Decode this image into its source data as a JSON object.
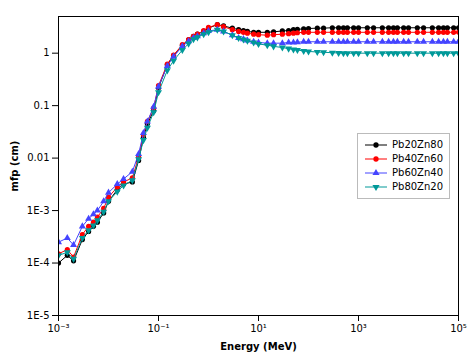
{
  "chart_data": {
    "type": "line",
    "xlabel": "Energy (MeV)",
    "ylabel": "mfp (cm)",
    "log": true,
    "grid": false,
    "legend": "center right",
    "xlim": [
      0.001,
      100000.0
    ],
    "ylim": [
      1e-05,
      5
    ],
    "xticks": [
      {
        "value": 0.001,
        "label": "10⁻³"
      },
      {
        "value": 0.1,
        "label": "10⁻¹"
      },
      {
        "value": 10.0,
        "label": "10¹"
      },
      {
        "value": 1000.0,
        "label": "10³"
      },
      {
        "value": 100000.0,
        "label": "10⁵"
      }
    ],
    "yticks": [
      {
        "value": 1e-05,
        "label": "1E-5"
      },
      {
        "value": 0.0001,
        "label": "1E-4"
      },
      {
        "value": 0.001,
        "label": "1E-3"
      },
      0.01,
      0.1,
      1
    ],
    "x": [
      0.001,
      0.0015,
      0.002,
      0.003,
      0.004,
      0.005,
      0.006,
      0.008,
      0.01,
      0.015,
      0.02,
      0.03,
      0.04,
      0.05,
      0.06,
      0.08,
      0.1,
      0.15,
      0.2,
      0.3,
      0.4,
      0.5,
      0.6,
      0.8,
      1.0,
      1.5,
      2.0,
      3.0,
      4.0,
      5.0,
      6.0,
      8.0,
      10.0,
      15.0,
      20.0,
      30.0,
      40.0,
      50.0,
      60.0,
      80.0,
      100.0,
      150.0,
      200.0,
      300.0,
      400.0,
      500.0,
      600.0,
      800.0,
      1000.0,
      1500.0,
      2000.0,
      3000.0,
      4000.0,
      5000.0,
      6000.0,
      8000.0,
      10000.0,
      15000.0,
      20000.0,
      30000.0,
      40000.0,
      50000.0,
      60000.0,
      80000.0,
      100000.0
    ],
    "series": [
      {
        "name": "Pb20Zn80",
        "color": "#000000",
        "marker": "circle",
        "values": [
          0.0001,
          0.00014,
          0.00011,
          0.00028,
          0.0004,
          0.0005,
          0.0006,
          0.0009,
          0.0015,
          0.0025,
          0.0032,
          0.0035,
          0.009,
          0.025,
          0.045,
          0.08,
          0.22,
          0.6,
          0.9,
          1.4,
          1.8,
          2.1,
          2.3,
          2.6,
          3.0,
          3.5,
          3.3,
          3.0,
          2.8,
          2.7,
          2.6,
          2.5,
          2.5,
          2.5,
          2.55,
          2.65,
          2.7,
          2.8,
          2.85,
          2.9,
          2.95,
          3.0,
          3.0,
          3.05,
          3.05,
          3.05,
          3.05,
          3.05,
          3.05,
          3.05,
          3.05,
          3.05,
          3.05,
          3.05,
          3.05,
          3.05,
          3.05,
          3.05,
          3.05,
          3.05,
          3.05,
          3.05,
          3.05,
          3.05,
          3.05
        ]
      },
      {
        "name": "Pb40Zn60",
        "color": "#ff0000",
        "marker": "circle",
        "values": [
          0.00015,
          0.00018,
          0.00013,
          0.00035,
          0.0005,
          0.0006,
          0.00075,
          0.0011,
          0.0018,
          0.0028,
          0.0035,
          0.0042,
          0.0105,
          0.028,
          0.05,
          0.09,
          0.24,
          0.62,
          0.92,
          1.45,
          1.82,
          2.1,
          2.3,
          2.7,
          3.1,
          3.5,
          3.2,
          2.8,
          2.6,
          2.5,
          2.4,
          2.3,
          2.25,
          2.2,
          2.25,
          2.3,
          2.35,
          2.4,
          2.45,
          2.5,
          2.5,
          2.5,
          2.5,
          2.5,
          2.5,
          2.5,
          2.5,
          2.5,
          2.5,
          2.5,
          2.5,
          2.5,
          2.5,
          2.5,
          2.5,
          2.5,
          2.5,
          2.5,
          2.5,
          2.5,
          2.5,
          2.5,
          2.5,
          2.5,
          2.5
        ]
      },
      {
        "name": "Pb60Zn40",
        "color": "#4444ff",
        "marker": "triangle-up",
        "values": [
          0.00025,
          0.0003,
          0.00022,
          0.0005,
          0.0007,
          0.00085,
          0.001,
          0.0015,
          0.0022,
          0.0032,
          0.004,
          0.0055,
          0.012,
          0.03,
          0.05,
          0.095,
          0.23,
          0.57,
          0.86,
          1.35,
          1.68,
          1.95,
          2.1,
          2.4,
          2.65,
          2.8,
          2.6,
          2.2,
          1.95,
          1.85,
          1.75,
          1.65,
          1.6,
          1.55,
          1.55,
          1.55,
          1.6,
          1.6,
          1.62,
          1.65,
          1.65,
          1.65,
          1.65,
          1.65,
          1.65,
          1.65,
          1.65,
          1.65,
          1.65,
          1.65,
          1.65,
          1.65,
          1.65,
          1.65,
          1.65,
          1.65,
          1.65,
          1.65,
          1.65,
          1.65,
          1.65,
          1.65,
          1.65,
          1.65,
          1.65
        ]
      },
      {
        "name": "Pb80Zn20",
        "color": "#009999",
        "marker": "triangle-down",
        "values": [
          0.00014,
          0.00016,
          0.00012,
          0.0003,
          0.00042,
          0.00052,
          0.00065,
          0.00095,
          0.0015,
          0.0023,
          0.003,
          0.0038,
          0.0095,
          0.022,
          0.038,
          0.075,
          0.18,
          0.47,
          0.72,
          1.15,
          1.52,
          1.85,
          2.0,
          2.3,
          2.5,
          2.8,
          2.6,
          2.2,
          1.95,
          1.82,
          1.72,
          1.6,
          1.5,
          1.42,
          1.35,
          1.28,
          1.22,
          1.18,
          1.15,
          1.1,
          1.08,
          1.05,
          1.04,
          1.02,
          1.01,
          1.0,
          1.0,
          1.0,
          1.0,
          1.0,
          1.0,
          1.0,
          1.0,
          1.0,
          1.0,
          1.0,
          1.0,
          1.0,
          1.0,
          1.0,
          1.0,
          1.0,
          1.0,
          1.0,
          1.0
        ]
      }
    ]
  }
}
